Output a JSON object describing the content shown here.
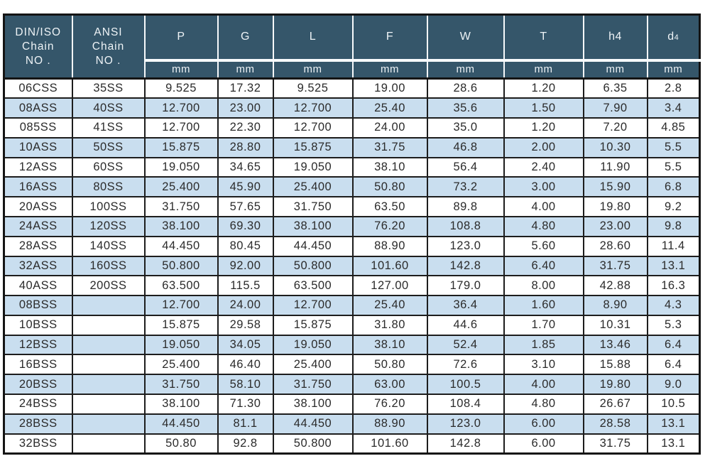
{
  "colors": {
    "header_bg": "#35566a",
    "header_text": "#eef3f6",
    "stripe_blue": "#c9deef",
    "row_white": "#ffffff",
    "grid_line": "#1d1d1d",
    "header_divider": "#f7fafc",
    "data_text": "#2b2b2b"
  },
  "chart_data": {
    "type": "table",
    "columns": [
      {
        "key": "din-iso-chain-no",
        "label": "DIN/ISO\nChain\nNO .",
        "sub": "",
        "unit": null
      },
      {
        "key": "ansi-chain-no",
        "label": "ANSI\nChain\nNO .",
        "sub": "",
        "unit": null
      },
      {
        "key": "p",
        "label": "P",
        "sub": "",
        "unit": "mm"
      },
      {
        "key": "g",
        "label": "G",
        "sub": "",
        "unit": "mm"
      },
      {
        "key": "l",
        "label": "L",
        "sub": "",
        "unit": "mm"
      },
      {
        "key": "f",
        "label": "F",
        "sub": "",
        "unit": "mm"
      },
      {
        "key": "w",
        "label": "W",
        "sub": "",
        "unit": "mm"
      },
      {
        "key": "t",
        "label": "T",
        "sub": "",
        "unit": "mm"
      },
      {
        "key": "h4",
        "label": "h4",
        "sub": "",
        "unit": "mm"
      },
      {
        "key": "d4",
        "label": "d",
        "sub": "4",
        "unit": "mm"
      }
    ],
    "rows": [
      [
        "06CSS",
        "35SS",
        "9.525",
        "17.32",
        "9.525",
        "19.00",
        "28.6",
        "1.20",
        "6.35",
        "2.8"
      ],
      [
        "08ASS",
        "40SS",
        "12.700",
        "23.00",
        "12.700",
        "25.40",
        "35.6",
        "1.50",
        "7.90",
        "3.4"
      ],
      [
        "085SS",
        "41SS",
        "12.700",
        "22.30",
        "12.700",
        "24.00",
        "35.0",
        "1.20",
        "7.20",
        "4.85"
      ],
      [
        "10ASS",
        "50SS",
        "15.875",
        "28.80",
        "15.875",
        "31.75",
        "46.8",
        "2.00",
        "10.30",
        "5.5"
      ],
      [
        "12ASS",
        "60SS",
        "19.050",
        "34.65",
        "19.050",
        "38.10",
        "56.4",
        "2.40",
        "11.90",
        "5.5"
      ],
      [
        "16ASS",
        "80SS",
        "25.400",
        "45.90",
        "25.400",
        "50.80",
        "73.2",
        "3.00",
        "15.90",
        "6.8"
      ],
      [
        "20ASS",
        "100SS",
        "31.750",
        "57.65",
        "31.750",
        "63.50",
        "89.8",
        "4.00",
        "19.80",
        "9.2"
      ],
      [
        "24ASS",
        "120SS",
        "38.100",
        "69.30",
        "38.100",
        "76.20",
        "108.8",
        "4.80",
        "23.00",
        "9.8"
      ],
      [
        "28ASS",
        "140SS",
        "44.450",
        "80.45",
        "44.450",
        "88.90",
        "123.0",
        "5.60",
        "28.60",
        "11.4"
      ],
      [
        "32ASS",
        "160SS",
        "50.800",
        "92.00",
        "50.800",
        "101.60",
        "142.8",
        "6.40",
        "31.75",
        "13.1"
      ],
      [
        "40ASS",
        "200SS",
        "63.500",
        "115.5",
        "63.500",
        "127.00",
        "179.0",
        "8.00",
        "42.88",
        "16.3"
      ],
      [
        "08BSS",
        "",
        "12.700",
        "24.00",
        "12.700",
        "25.40",
        "36.4",
        "1.60",
        "8.90",
        "4.3"
      ],
      [
        "10BSS",
        "",
        "15.875",
        "29.58",
        "15.875",
        "31.80",
        "44.6",
        "1.70",
        "10.31",
        "5.3"
      ],
      [
        "12BSS",
        "",
        "19.050",
        "34.05",
        "19.050",
        "38.10",
        "52.4",
        "1.85",
        "13.46",
        "6.4"
      ],
      [
        "16BSS",
        "",
        "25.400",
        "46.40",
        "25.400",
        "50.80",
        "72.6",
        "3.10",
        "15.88",
        "6.4"
      ],
      [
        "20BSS",
        "",
        "31.750",
        "58.10",
        "31.750",
        "63.00",
        "100.5",
        "4.00",
        "19.80",
        "9.0"
      ],
      [
        "24BSS",
        "",
        "38.100",
        "71.30",
        "38.100",
        "76.20",
        "108.4",
        "4.80",
        "26.67",
        "10.5"
      ],
      [
        "28BSS",
        "",
        "44.450",
        "81.1",
        "44.450",
        "88.90",
        "123.0",
        "6.00",
        "28.58",
        "13.1"
      ],
      [
        "32BSS",
        "",
        "50.80",
        "92.8",
        "50.800",
        "101.60",
        "142.8",
        "6.00",
        "31.75",
        "13.1"
      ]
    ]
  }
}
